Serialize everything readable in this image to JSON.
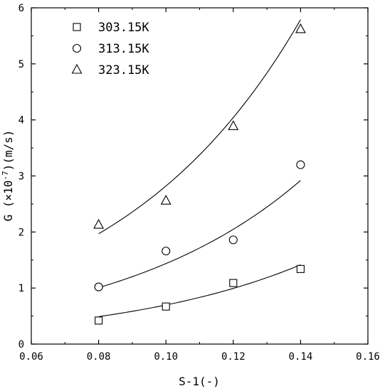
{
  "chart_data": {
    "type": "scatter",
    "xlabel": "S-1(-)",
    "ylabel_prefix": "G (×10",
    "ylabel_exp": "-7",
    "ylabel_suffix": ")(m/s)",
    "xlim": [
      0.06,
      0.16
    ],
    "ylim": [
      0,
      6
    ],
    "xticks": [
      "0.06",
      "0.08",
      "0.10",
      "0.12",
      "0.14",
      "0.16"
    ],
    "yticks": [
      "0",
      "1",
      "2",
      "3",
      "4",
      "5",
      "6"
    ],
    "legend_position": "top-left",
    "grid": false,
    "series": [
      {
        "name": "303.15K",
        "marker": "square",
        "x": [
          0.08,
          0.1,
          0.12,
          0.14
        ],
        "y": [
          0.42,
          0.67,
          1.09,
          1.34
        ],
        "fit": [
          0.46,
          0.75,
          1.04,
          1.34
        ]
      },
      {
        "name": "313.15K",
        "marker": "circle",
        "x": [
          0.08,
          0.1,
          0.12,
          0.14
        ],
        "y": [
          1.02,
          1.66,
          1.86,
          3.2
        ],
        "fit": [
          0.97,
          1.5,
          2.1,
          2.83
        ]
      },
      {
        "name": "323.15K",
        "marker": "triangle",
        "x": [
          0.08,
          0.1,
          0.12,
          0.14
        ],
        "y": [
          2.13,
          2.56,
          3.89,
          5.62
        ],
        "fit": [
          1.9,
          2.94,
          4.14,
          5.62
        ]
      }
    ]
  }
}
